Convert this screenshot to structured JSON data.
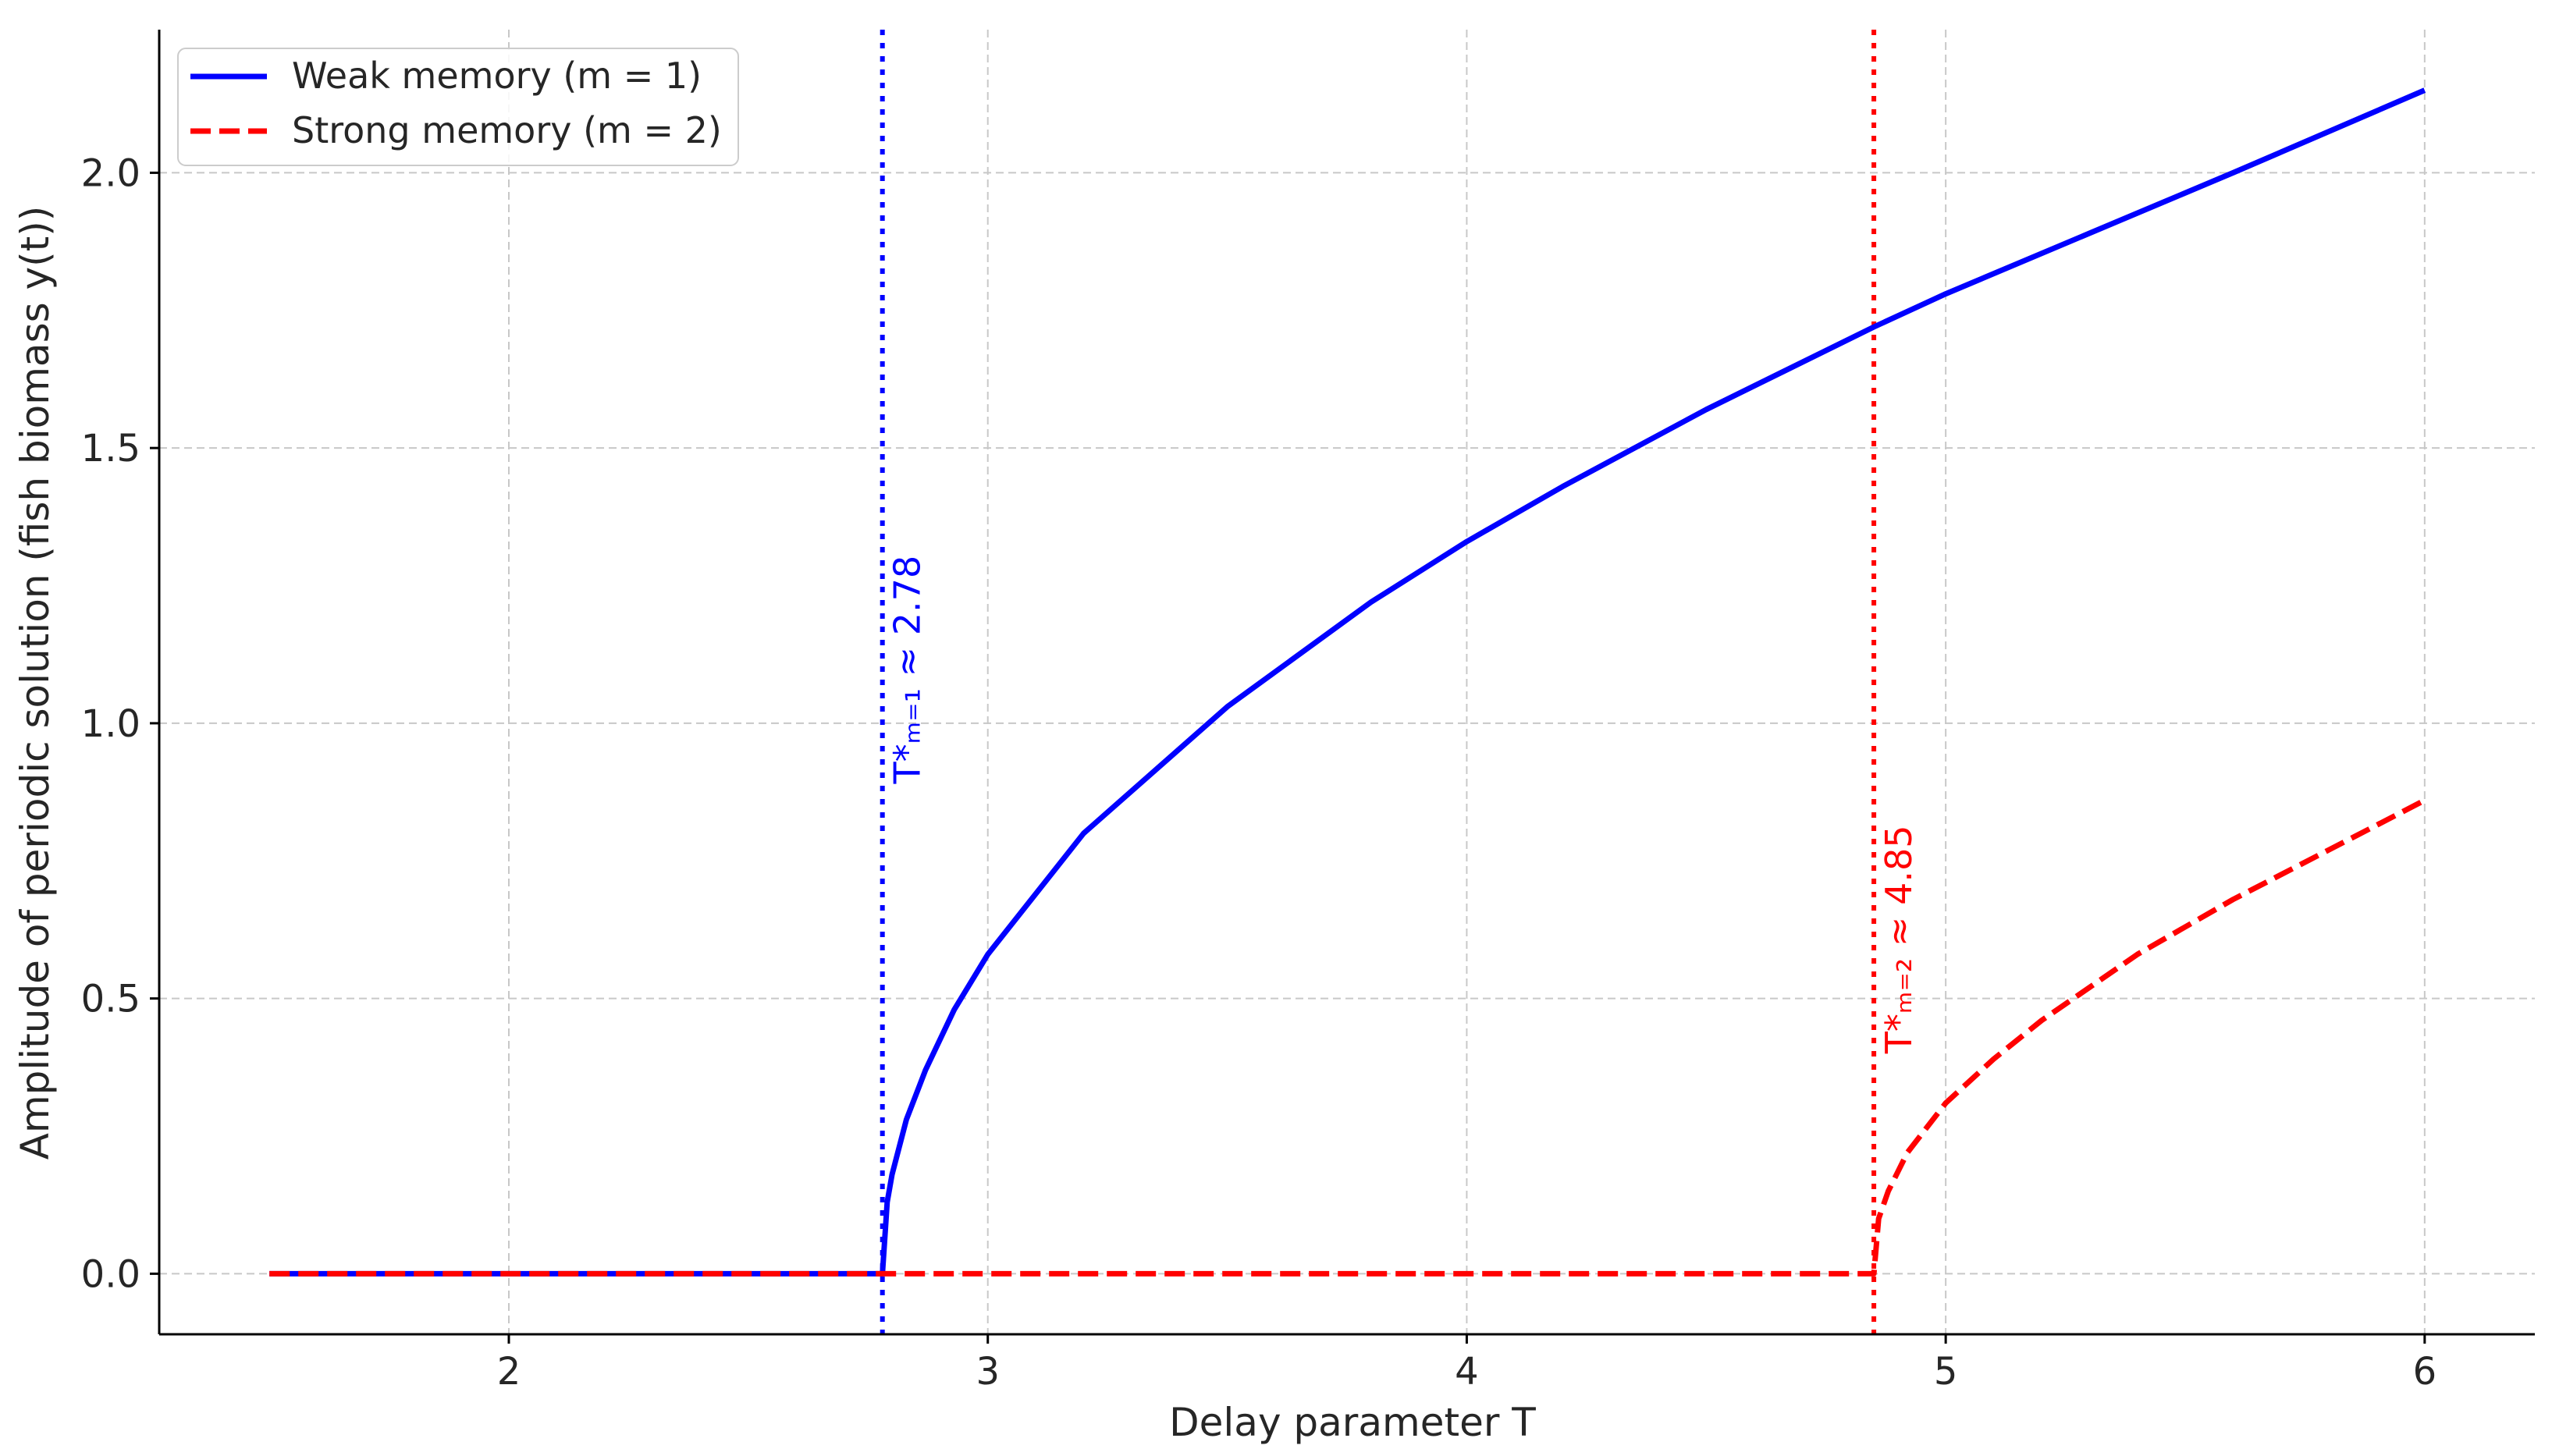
{
  "chart_data": {
    "type": "line",
    "title": "",
    "xlabel": "Delay parameter T",
    "ylabel": "Amplitude of periodic solution (fish biomass y(t))",
    "xlim": [
      1.27,
      6.23
    ],
    "ylim": [
      -0.11,
      2.26
    ],
    "x_ticks": [
      2,
      3,
      4,
      5,
      6
    ],
    "x_tick_labels": [
      "2",
      "3",
      "4",
      "5",
      "6"
    ],
    "y_ticks": [
      0.0,
      0.5,
      1.0,
      1.5,
      2.0
    ],
    "y_tick_labels": [
      "0.0",
      "0.5",
      "1.0",
      "1.5",
      "2.0"
    ],
    "grid": true,
    "legend_position": "top-left",
    "series": [
      {
        "name": "Weak memory (m = 1)",
        "color": "#0000ff",
        "style": "solid",
        "x": [
          1.5,
          2.0,
          2.5,
          2.78,
          2.79,
          2.8,
          2.83,
          2.87,
          2.93,
          3.0,
          3.2,
          3.5,
          3.8,
          4.0,
          4.2,
          4.5,
          4.85,
          5.0,
          5.3,
          5.6,
          6.0
        ],
        "y": [
          0.0,
          0.0,
          0.0,
          0.0,
          0.13,
          0.18,
          0.28,
          0.37,
          0.48,
          0.58,
          0.8,
          1.03,
          1.22,
          1.33,
          1.43,
          1.57,
          1.72,
          1.78,
          1.89,
          2.0,
          2.15
        ]
      },
      {
        "name": "Strong memory (m = 2)",
        "color": "#ff0000",
        "style": "dashed",
        "x": [
          1.5,
          2.0,
          3.0,
          4.0,
          4.85,
          4.86,
          4.88,
          4.92,
          5.0,
          5.1,
          5.2,
          5.4,
          5.6,
          5.8,
          6.0
        ],
        "y": [
          0.0,
          0.0,
          0.0,
          0.0,
          0.0,
          0.1,
          0.15,
          0.22,
          0.31,
          0.39,
          0.46,
          0.58,
          0.68,
          0.77,
          0.86
        ]
      }
    ],
    "vlines": [
      {
        "x": 2.78,
        "color": "#0000ff",
        "style": "dotted",
        "label": "T*ₘ₌₁ ≈ 2.78"
      },
      {
        "x": 4.85,
        "color": "#ff0000",
        "style": "dotted",
        "label": "T*ₘ₌₂ ≈ 4.85"
      }
    ]
  }
}
